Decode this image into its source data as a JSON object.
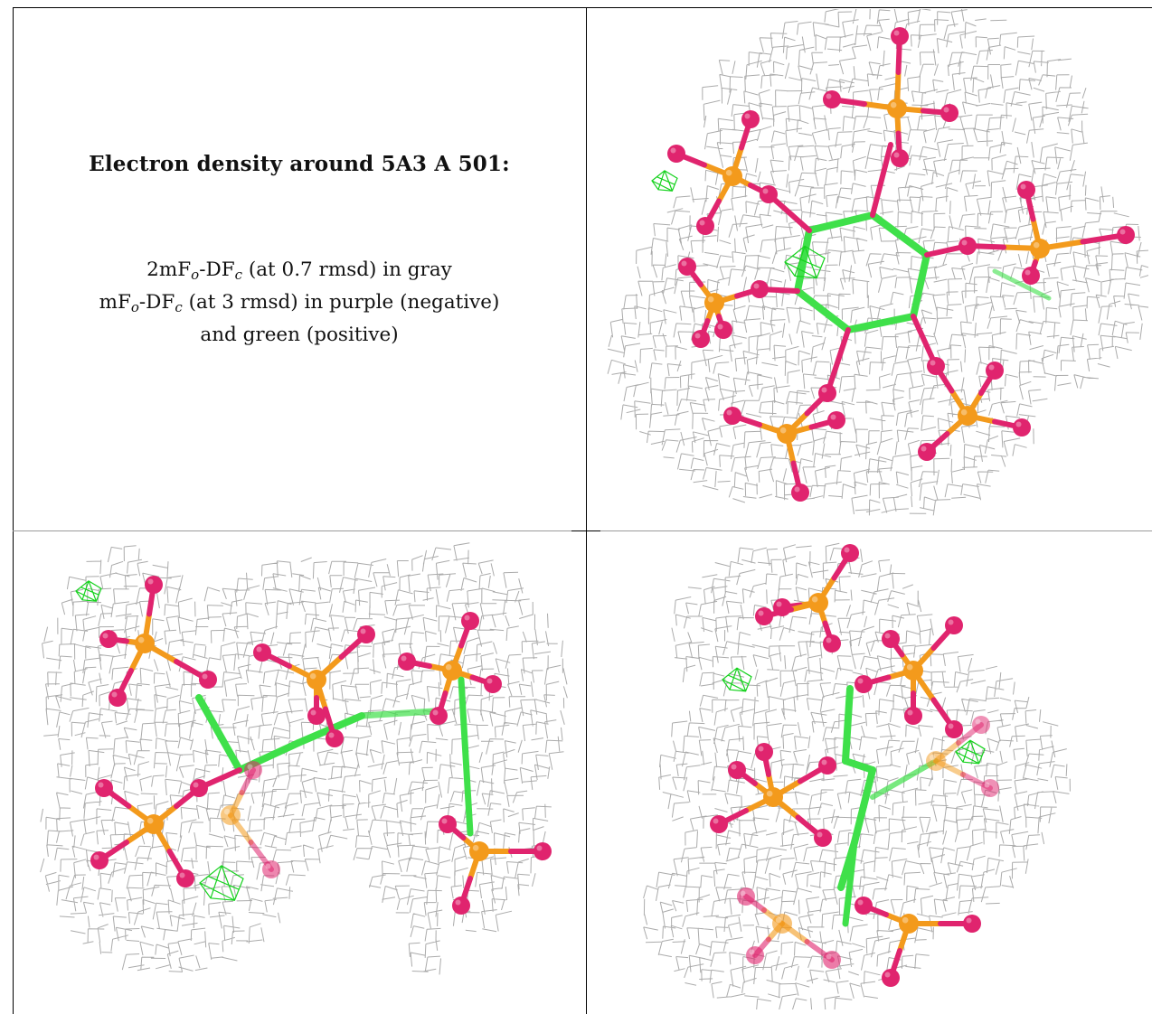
{
  "caption": {
    "title": "Electron density around 5A3 A 501:",
    "line1": {
      "lead": "2mF",
      "sub1": "o",
      "mid": "-DF",
      "sub2": "c",
      "tail": " (at 0.7 rmsd) in gray"
    },
    "line2": {
      "lead": "mF",
      "sub1": "o",
      "mid": "-DF",
      "sub2": "c",
      "tail": " (at 3 rmsd) in purple (negative)"
    },
    "line3": "and green (positive)"
  },
  "colors": {
    "mesh": "#9c9c9c",
    "carbon": "#3fe04a",
    "oxygen": "#e0246e",
    "phosphorus": "#f39a1c",
    "positive_density": "#16d21e"
  }
}
